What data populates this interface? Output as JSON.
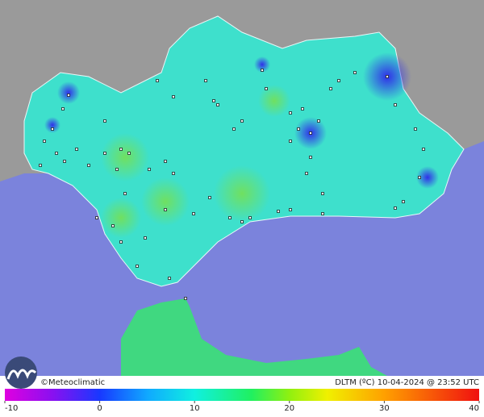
{
  "credit": "©Meteoclimatic",
  "caption": "DLTM (ºC)  10-04-2024 @ 23:52 UTC",
  "colorbar": {
    "lim": [
      -10,
      40
    ],
    "ticks": [
      -10,
      0,
      10,
      20,
      30,
      40
    ]
  }
}
